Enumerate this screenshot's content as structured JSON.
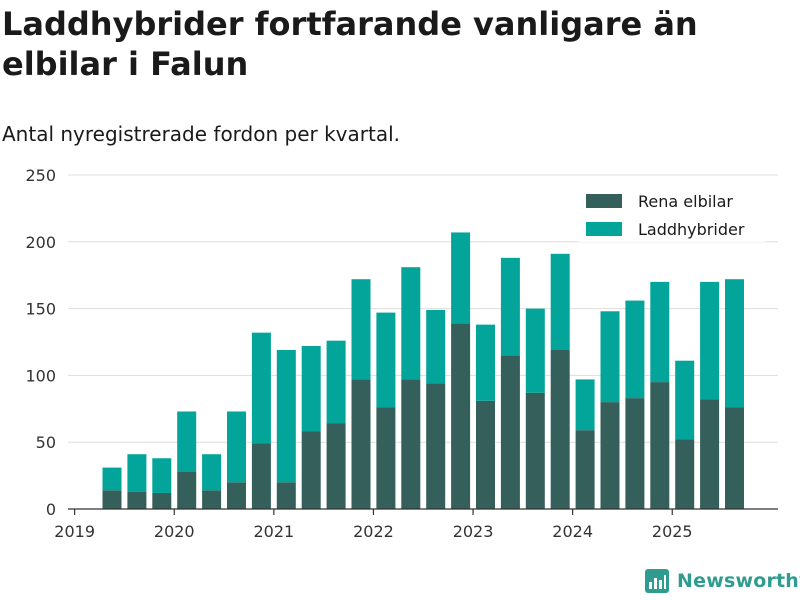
{
  "title": "Laddhybrider fortfarande vanligare än elbilar i Falun",
  "subtitle": "Antal nyregistrerade fordon per kvartal.",
  "brand": "Newsworthy",
  "colors": {
    "rena_elbilar": "#355f5b",
    "laddhybrider": "#03a59b",
    "grid": "#dddddd",
    "axis": "#333333",
    "brand": "#2f9c8f"
  },
  "chart_data": {
    "type": "bar",
    "stacked": true,
    "categories": [
      "2019 Q2",
      "2019 Q3",
      "2019 Q4",
      "2020 Q1",
      "2020 Q2",
      "2020 Q3",
      "2020 Q4",
      "2021 Q1",
      "2021 Q2",
      "2021 Q3",
      "2021 Q4",
      "2022 Q1",
      "2022 Q2",
      "2022 Q3",
      "2022 Q4",
      "2023 Q1",
      "2023 Q2",
      "2023 Q3",
      "2023 Q4",
      "2024 Q1",
      "2024 Q2",
      "2024 Q3",
      "2024 Q4",
      "2025 Q1",
      "2025 Q2",
      "2025 Q3"
    ],
    "x_ticks": [
      "2019",
      "2020",
      "2021",
      "2022",
      "2023",
      "2024",
      "2025"
    ],
    "series": [
      {
        "name": "Rena elbilar",
        "values": [
          14,
          13,
          12,
          28,
          14,
          20,
          49,
          20,
          58,
          64,
          97,
          76,
          97,
          94,
          139,
          81,
          115,
          87,
          119,
          59,
          80,
          83,
          95,
          52,
          82,
          76
        ]
      },
      {
        "name": "Laddhybrider",
        "values": [
          17,
          28,
          26,
          45,
          27,
          53,
          83,
          99,
          64,
          62,
          75,
          71,
          84,
          55,
          68,
          57,
          73,
          63,
          72,
          38,
          68,
          73,
          75,
          59,
          88,
          96
        ]
      }
    ],
    "ylim": [
      0,
      250
    ],
    "y_ticks": [
      "0",
      "50",
      "100",
      "150",
      "200",
      "250"
    ],
    "xlabel": "",
    "ylabel": "",
    "legend_position": "top-right"
  }
}
